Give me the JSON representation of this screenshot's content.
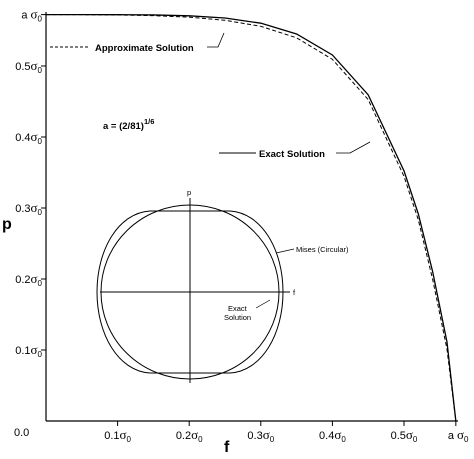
{
  "chart_data": {
    "type": "line",
    "xlabel": "f",
    "ylabel": "p",
    "xlim": [
      0,
      0.5724
    ],
    "ylim": [
      0,
      0.5724
    ],
    "grid": false,
    "x_ticks": [
      {
        "value": 0.1,
        "label": "0.1σ0"
      },
      {
        "value": 0.2,
        "label": "0.2σ0"
      },
      {
        "value": 0.3,
        "label": "0.3σ0"
      },
      {
        "value": 0.4,
        "label": "0.4σ0"
      },
      {
        "value": 0.5,
        "label": "0.5σ0"
      },
      {
        "value": 0.5724,
        "label": "a σ0"
      }
    ],
    "y_ticks": [
      {
        "value": 0.1,
        "label": "0.1σ0"
      },
      {
        "value": 0.2,
        "label": "0.2σ0"
      },
      {
        "value": 0.3,
        "label": "0.3σ0"
      },
      {
        "value": 0.4,
        "label": "0.4σ0"
      },
      {
        "value": 0.5,
        "label": "0.5σ0"
      },
      {
        "value": 0.5724,
        "label": "a σ0"
      }
    ],
    "origin_label": "0.0",
    "formula_annotation": "a = (2/81)1/6",
    "series": [
      {
        "name": "Exact Solution",
        "style": "solid",
        "points": [
          [
            0.0,
            0.5724
          ],
          [
            0.05,
            0.5724
          ],
          [
            0.1,
            0.5723
          ],
          [
            0.15,
            0.5719
          ],
          [
            0.2,
            0.5707
          ],
          [
            0.25,
            0.5676
          ],
          [
            0.3,
            0.5603
          ],
          [
            0.35,
            0.5451
          ],
          [
            0.4,
            0.5155
          ],
          [
            0.45,
            0.4594
          ],
          [
            0.5,
            0.3523
          ],
          [
            0.52,
            0.2917
          ],
          [
            0.54,
            0.2104
          ],
          [
            0.56,
            0.1115
          ],
          [
            0.5724,
            0.0
          ]
        ]
      },
      {
        "name": "Approximate Solution",
        "style": "dashed",
        "points": [
          [
            0.0,
            0.5724
          ],
          [
            0.05,
            0.5723
          ],
          [
            0.1,
            0.5719
          ],
          [
            0.15,
            0.5709
          ],
          [
            0.2,
            0.5688
          ],
          [
            0.25,
            0.5644
          ],
          [
            0.3,
            0.5559
          ],
          [
            0.35,
            0.5397
          ],
          [
            0.4,
            0.5094
          ],
          [
            0.45,
            0.4527
          ],
          [
            0.5,
            0.3446
          ],
          [
            0.52,
            0.2834
          ],
          [
            0.54,
            0.1996
          ],
          [
            0.56,
            0.1014
          ],
          [
            0.5724,
            0.0
          ]
        ]
      }
    ],
    "annotations": [
      {
        "text": "Approximate Solution",
        "points_to": "Approximate Solution"
      },
      {
        "text": "Exact Solution",
        "points_to": "Exact Solution"
      }
    ],
    "inset": {
      "x_axis_label": "f",
      "y_axis_label": "p",
      "shapes": [
        {
          "name": "Mises (Circular)",
          "label": "Mises (Circular)"
        },
        {
          "name": "Exact Solution",
          "label_lines": [
            "Exact",
            "Solution"
          ]
        }
      ]
    }
  }
}
